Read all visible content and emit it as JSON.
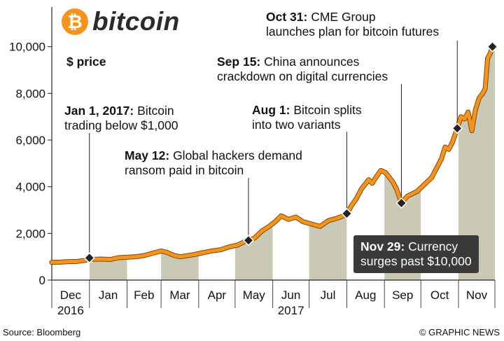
{
  "title": "bitcoin",
  "logo_glyph": "₿",
  "units": "$ price",
  "source": "Source: Bloomberg",
  "credit": "© GRAPHIC NEWS",
  "colors": {
    "line": "#f7931a",
    "band_shade": "#c9c9b6",
    "marker": "#222222",
    "callout_bg": "#3a3a3a"
  },
  "annotations": [
    {
      "date_label": "Jan 1, 2017:",
      "text": [
        "Bitcoin",
        "trading below $1,000"
      ],
      "x_day": 0,
      "value": 950
    },
    {
      "date_label": "May 12:",
      "text": [
        "Global hackers demand",
        "ransom paid in bitcoin"
      ],
      "x_day": 131,
      "value": 1700
    },
    {
      "date_label": "Aug 1:",
      "text": [
        "Bitcoin splits",
        "into two variants"
      ],
      "x_day": 212,
      "value": 2850
    },
    {
      "date_label": "Sep 15:",
      "text": [
        "China announces",
        "crackdown on digital currencies"
      ],
      "x_day": 257,
      "value": 3300
    },
    {
      "date_label": "Oct 31:",
      "text": [
        "CME Group",
        "launches plan for bitcoin futures"
      ],
      "x_day": 303,
      "value": 6500
    },
    {
      "date_label": "Nov 29:",
      "text": [
        "Currency",
        "surges past $10,000"
      ],
      "x_day": 332,
      "value": 10000
    }
  ],
  "chart_data": {
    "type": "area",
    "x_unit": "days since 2017-01-01",
    "x": [
      -31,
      -24,
      -17,
      -10,
      -3,
      0,
      4,
      10,
      17,
      24,
      31,
      38,
      45,
      52,
      59,
      64,
      70,
      75,
      80,
      87,
      94,
      101,
      108,
      115,
      122,
      128,
      131,
      136,
      142,
      148,
      153,
      158,
      164,
      170,
      176,
      183,
      190,
      197,
      204,
      209,
      212,
      216,
      220,
      224,
      227,
      230,
      233,
      236,
      240,
      244,
      247,
      250,
      253,
      257,
      262,
      266,
      270,
      274,
      278,
      282,
      286,
      290,
      293,
      296,
      299,
      301,
      303,
      306,
      309,
      312,
      315,
      318,
      321,
      324,
      326,
      328,
      330,
      332
    ],
    "values": [
      760,
      770,
      790,
      800,
      850,
      950,
      890,
      900,
      880,
      960,
      980,
      1000,
      1050,
      1150,
      1250,
      1180,
      1050,
      1000,
      1040,
      1100,
      1180,
      1250,
      1300,
      1420,
      1500,
      1650,
      1700,
      1800,
      2100,
      2300,
      2500,
      2750,
      2600,
      2700,
      2500,
      2400,
      2300,
      2550,
      2650,
      2750,
      2850,
      3200,
      3500,
      3900,
      4100,
      4300,
      4150,
      4400,
      4700,
      4600,
      4400,
      4200,
      3900,
      3300,
      3600,
      3700,
      3800,
      4000,
      4200,
      4400,
      4800,
      5200,
      5700,
      5600,
      5900,
      6200,
      6500,
      7000,
      6900,
      7200,
      6400,
      7300,
      7800,
      8000,
      8200,
      9500,
      9700,
      10000
    ],
    "months": [
      "Dec",
      "Jan",
      "Feb",
      "Mar",
      "Apr",
      "May",
      "Jun",
      "Jul",
      "Aug",
      "Sep",
      "Oct",
      "Nov"
    ],
    "month_start_days": [
      -31,
      0,
      31,
      59,
      90,
      120,
      151,
      181,
      212,
      243,
      273,
      304
    ],
    "month_end_day": 334,
    "year_labels": [
      {
        "label": "2016",
        "month": "Dec"
      },
      {
        "label": "2017",
        "month": "Jun"
      }
    ],
    "yticks": [
      "0",
      "2,000",
      "4,000",
      "6,000",
      "8,000",
      "10,000"
    ],
    "ytick_values": [
      0,
      2000,
      4000,
      6000,
      8000,
      10000
    ],
    "ylim": [
      0,
      10800
    ],
    "ylabel": "$ price"
  }
}
